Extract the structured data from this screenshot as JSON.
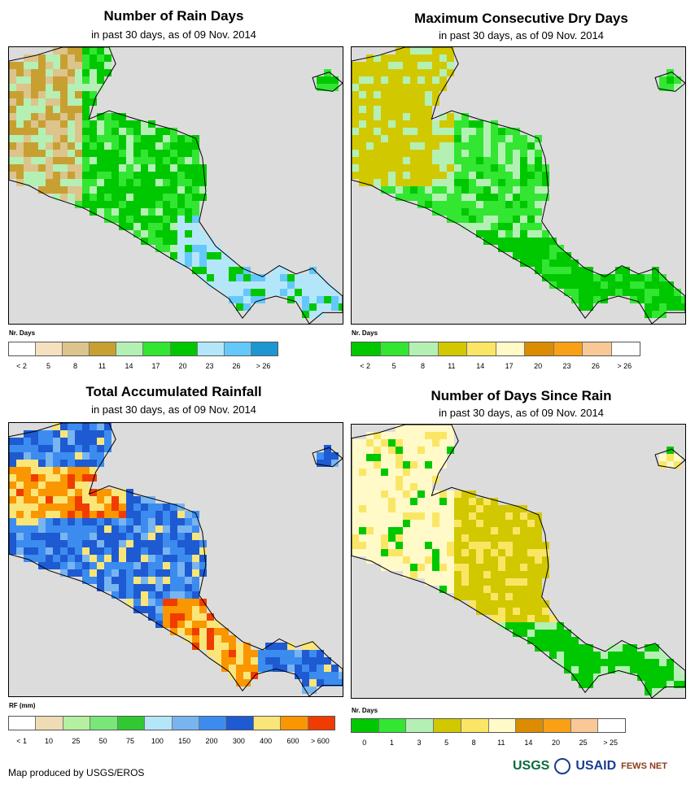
{
  "panels": [
    {
      "title": "Number of Rain Days",
      "subtitle": "in past 30 days, as of 09 Nov. 2014",
      "legend_title": "Nr. Days",
      "legend_colors": [
        "#ffffff",
        "#f5e0c0",
        "#dcc48c",
        "#c8a032",
        "#b4f0b4",
        "#32e632",
        "#00c800",
        "#b4e6fa",
        "#64c8fa",
        "#1e96d2"
      ],
      "legend_labels": [
        "< 2",
        "5",
        "8",
        "11",
        "14",
        "17",
        "20",
        "23",
        "26",
        "> 26"
      ],
      "map_colors": [
        "#00c800",
        "#32e632",
        "#b4f0b4",
        "#c8a032",
        "#dcc48c",
        "#b4e6fa",
        "#64c8fa"
      ]
    },
    {
      "title": "Maximum Consecutive Dry Days",
      "subtitle": "in past 30 days, as of 09 Nov. 2014",
      "legend_title": "Nr. Days",
      "legend_colors": [
        "#00c800",
        "#32e632",
        "#b4f0b4",
        "#d2c800",
        "#fae664",
        "#fffac8",
        "#dc8c00",
        "#faa014",
        "#fac896",
        "#ffffff"
      ],
      "legend_labels": [
        "< 2",
        "5",
        "8",
        "11",
        "14",
        "17",
        "20",
        "23",
        "26",
        "> 26"
      ],
      "map_colors": [
        "#00c800",
        "#32e632",
        "#b4f0b4",
        "#d2c800",
        "#fae664"
      ]
    },
    {
      "title": "Total Accumulated Rainfall",
      "subtitle": "in past 30 days, as of 09 Nov. 2014",
      "legend_title": "RF (mm)",
      "legend_colors": [
        "#ffffff",
        "#f0dcb4",
        "#b4f0a0",
        "#78e678",
        "#32c832",
        "#b4e6fa",
        "#78b4f0",
        "#3c8cf0",
        "#1e5ad2",
        "#fae678",
        "#fa9600",
        "#f03c00"
      ],
      "legend_labels": [
        "< 1",
        "10",
        "25",
        "50",
        "75",
        "100",
        "150",
        "200",
        "300",
        "400",
        "600",
        "> 600"
      ],
      "map_colors": [
        "#1e5ad2",
        "#3c8cf0",
        "#78b4f0",
        "#fae678",
        "#fa9600",
        "#f03c00"
      ]
    },
    {
      "title": "Number of Days Since Rain",
      "subtitle": "in past 30 days, as of 09 Nov. 2014",
      "legend_title": "Nr. Days",
      "legend_colors": [
        "#00c800",
        "#32e632",
        "#b4f0b4",
        "#d2c800",
        "#fae664",
        "#fffac8",
        "#dc8c00",
        "#faa014",
        "#fac896",
        "#ffffff"
      ],
      "legend_labels": [
        "0",
        "1",
        "3",
        "5",
        "8",
        "11",
        "14",
        "20",
        "25",
        "> 25"
      ],
      "map_colors": [
        "#00c800",
        "#b4f0b4",
        "#d2c800",
        "#fae664",
        "#fffac8"
      ]
    }
  ],
  "footer": "Map produced by USGS/EROS",
  "logos": {
    "usgs": "USGS",
    "usaid": "USAID",
    "fews": "FEWS NET"
  }
}
